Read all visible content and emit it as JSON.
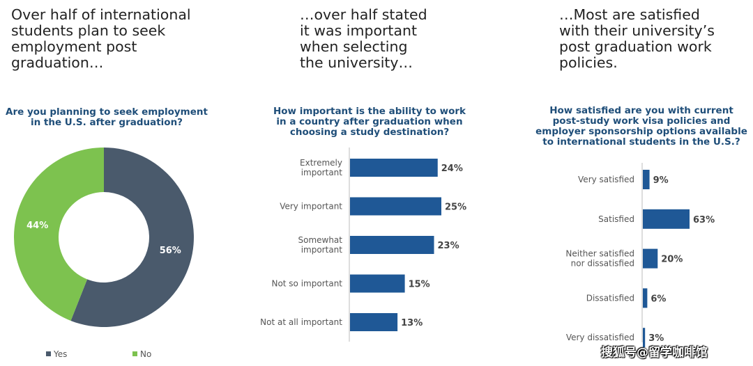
{
  "headlines": [
    {
      "lines": [
        "Over half of international",
        "students plan to seek",
        "employment post",
        "graduation…"
      ]
    },
    {
      "lines": [
        "…over half stated",
        "it was important",
        "when selecting",
        "the university…"
      ]
    },
    {
      "lines": [
        "…Most are satisfied",
        "with their university’s",
        "post graduation work",
        "policies."
      ]
    }
  ],
  "chart_data": [
    {
      "type": "pie",
      "donut": true,
      "title_lines": [
        "Are you planning to seek employment",
        "in the U.S. after graduation?"
      ],
      "categories": [
        "Yes",
        "No"
      ],
      "values": [
        56,
        44
      ],
      "value_labels": [
        "56%",
        "44%"
      ],
      "colors": [
        "#4a5a6c",
        "#7dc24f"
      ],
      "legend_position": "bottom"
    },
    {
      "type": "bar",
      "orientation": "horizontal",
      "title_lines": [
        "How important is the ability to work",
        "in a country after graduation when",
        "choosing a study destination?"
      ],
      "categories": [
        [
          "Extremely",
          "important"
        ],
        [
          "Very important"
        ],
        [
          "Somewhat",
          "important"
        ],
        [
          "Not so important"
        ],
        [
          "Not at all important"
        ]
      ],
      "values": [
        24,
        25,
        23,
        15,
        13
      ],
      "value_labels": [
        "24%",
        "25%",
        "23%",
        "15%",
        "13%"
      ],
      "color": "#1f5896",
      "xlim": [
        0,
        25
      ]
    },
    {
      "type": "bar",
      "orientation": "horizontal",
      "title_lines": [
        "How satisfied are you with current",
        "post-study work visa policies and",
        "employer sponsorship options available",
        "to international students in the U.S.?"
      ],
      "categories": [
        [
          "Very satisfied"
        ],
        [
          "Satisfied"
        ],
        [
          "Neither satisfied",
          "nor dissatisfied"
        ],
        [
          "Dissatisfied"
        ],
        [
          "Very dissatisfied"
        ]
      ],
      "values": [
        9,
        63,
        20,
        6,
        3
      ],
      "value_labels": [
        "9%",
        "63%",
        "20%",
        "6%",
        "3%"
      ],
      "color": "#1f5896",
      "xlim": [
        0,
        63
      ]
    }
  ],
  "watermark": "搜狐号@留学咖啡馆"
}
